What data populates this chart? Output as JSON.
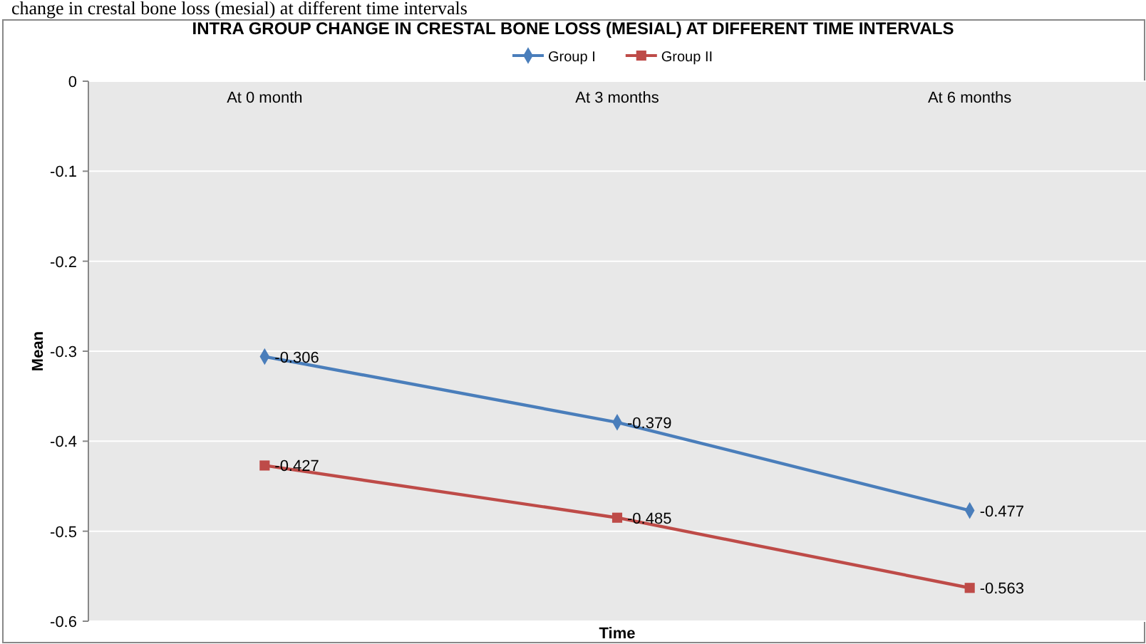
{
  "chart_data": {
    "type": "line",
    "title": "INTRA GROUP CHANGE IN CRESTAL BONE LOSS (MESIAL) AT DIFFERENT TIME INTERVALS",
    "annotations": [
      "change in crestal bone loss (mesial) at different time intervals"
    ],
    "xlabel": "Time",
    "ylabel": "Mean",
    "categories": [
      "At 0 month",
      "At 3 months",
      "At 6 months"
    ],
    "series": [
      {
        "name": "Group I",
        "color": "#4a7ebb",
        "marker": "diamond",
        "values": [
          -0.306,
          -0.379,
          -0.477
        ]
      },
      {
        "name": "Group II",
        "color": "#be4b48",
        "marker": "square",
        "values": [
          -0.427,
          -0.485,
          -0.563
        ]
      }
    ],
    "ylim": [
      -0.6,
      0
    ],
    "yticks": [
      0,
      -0.1,
      -0.2,
      -0.3,
      -0.4,
      -0.5,
      -0.6
    ],
    "grid": "y",
    "legend": "top",
    "data_labels": true
  }
}
